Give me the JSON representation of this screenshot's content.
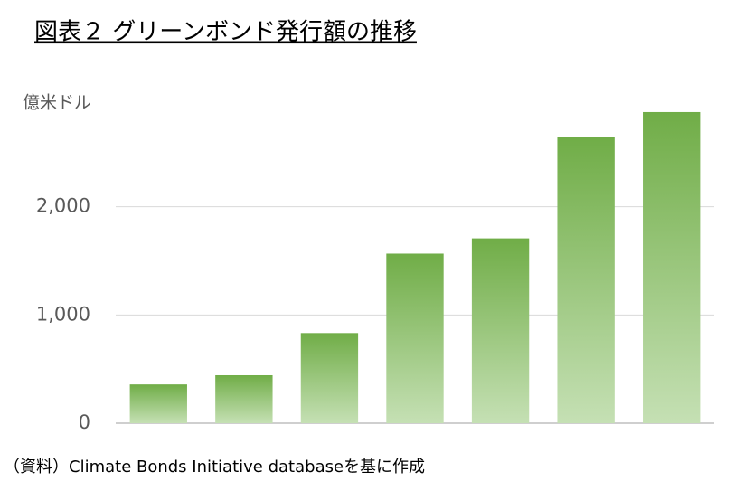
{
  "chart_data": {
    "type": "bar",
    "title": "図表２ グリーンボンド発行額の推移",
    "y_axis_label": "億米ドル",
    "source": "（資料）Climate Bonds Initiative databaseを基に作成",
    "categories": [
      null,
      null,
      null,
      null,
      null,
      null,
      null
    ],
    "values": [
      358,
      443,
      833,
      1567,
      1708,
      2642,
      2875
    ],
    "color": "#70ad47",
    "color_bottom": "#c5e0b4",
    "ylim": [
      0,
      3000
    ],
    "yticks": [
      0,
      {
        "value": 1000,
        "label": "1,000"
      },
      {
        "value": 2000,
        "label": "2,000"
      }
    ],
    "grid": true
  }
}
